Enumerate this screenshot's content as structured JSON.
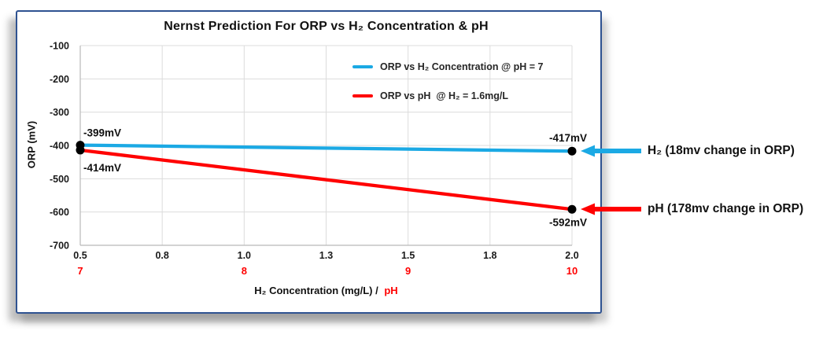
{
  "chart_data": {
    "type": "line",
    "title": "Nernst Prediction For ORP vs H₂ Concentration & pH",
    "xlabel_main": "H₂ Concentration (mg/L) /",
    "xlabel_ph": "pH",
    "ylabel": "ORP (mV)",
    "xlim": [
      0.5,
      2.0
    ],
    "ylim": [
      -700,
      -100
    ],
    "grid": true,
    "legend_position": "inside-top-right",
    "x_ticks": [
      {
        "value": 0.5,
        "label": "0.5",
        "ph_label": "7"
      },
      {
        "value": 0.75,
        "label": "0.8",
        "ph_label": ""
      },
      {
        "value": 1.0,
        "label": "1.0",
        "ph_label": "8"
      },
      {
        "value": 1.25,
        "label": "1.3",
        "ph_label": ""
      },
      {
        "value": 1.5,
        "label": "1.5",
        "ph_label": "9"
      },
      {
        "value": 1.75,
        "label": "1.8",
        "ph_label": ""
      },
      {
        "value": 2.0,
        "label": "2.0",
        "ph_label": "10"
      }
    ],
    "y_ticks": [
      {
        "value": -100,
        "label": "-100"
      },
      {
        "value": -200,
        "label": "-200"
      },
      {
        "value": -300,
        "label": "-300"
      },
      {
        "value": -400,
        "label": "-400"
      },
      {
        "value": -500,
        "label": "-500"
      },
      {
        "value": -600,
        "label": "-600"
      },
      {
        "value": -700,
        "label": "-700"
      }
    ],
    "series": [
      {
        "name": "ORP vs H₂ Concentration @ pH = 7",
        "color": "#1BA9E4",
        "points": [
          {
            "x": 0.5,
            "y": -399
          },
          {
            "x": 2.0,
            "y": -417
          }
        ],
        "point_labels": [
          {
            "text": "-399mV",
            "dx": 4,
            "dy": -11,
            "anchor": "start"
          },
          {
            "text": "-417mV",
            "dx": -5,
            "dy": -12,
            "anchor": "middle"
          }
        ]
      },
      {
        "name": "ORP vs pH  @ H₂ = 1.6mg/L",
        "color": "#FF0000",
        "points": [
          {
            "x": 0.5,
            "y": -414
          },
          {
            "x": 2.0,
            "y": -592
          }
        ],
        "point_labels": [
          {
            "text": "-414mV",
            "dx": 4,
            "dy": 27,
            "anchor": "start"
          },
          {
            "text": "-592mV",
            "dx": -5,
            "dy": 21,
            "anchor": "middle"
          }
        ]
      }
    ]
  },
  "annotations": [
    {
      "label": "H₂ (18mv change in ORP)",
      "color": "#1BA9E4",
      "target_y": -417
    },
    {
      "label": "pH (178mv change in ORP)",
      "color": "#FF0000",
      "target_y": -592
    }
  ],
  "style": {
    "border_color": "#2E5291",
    "ph_color": "#FF0000",
    "gridline_color": "#DCDCDC",
    "axis_line_color": "#B9B9B9",
    "tick_text_color": "#1A1A1A",
    "point_color": "#000000"
  }
}
